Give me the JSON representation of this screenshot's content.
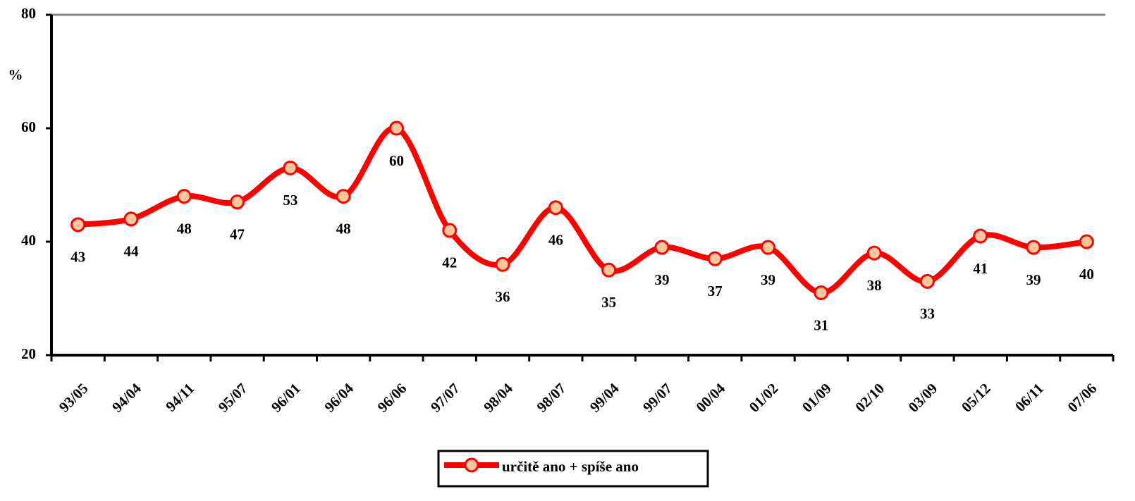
{
  "chart_data": {
    "type": "line",
    "y_axis_label": "%",
    "categories": [
      "93/05",
      "94/04",
      "94/11",
      "95/07",
      "96/01",
      "96/04",
      "96/06",
      "97/07",
      "98/04",
      "98/07",
      "99/04",
      "99/07",
      "00/04",
      "01/02",
      "01/09",
      "02/10",
      "03/09",
      "05/12",
      "06/11",
      "07/06"
    ],
    "series": [
      {
        "name": "určitě ano + spíše ano",
        "color": "#ff0000",
        "values": [
          43,
          44,
          48,
          47,
          53,
          48,
          60,
          42,
          36,
          46,
          35,
          39,
          37,
          39,
          31,
          38,
          33,
          41,
          39,
          40
        ]
      }
    ],
    "ylim": [
      20,
      80
    ],
    "yticks": [
      20,
      40,
      60,
      80
    ],
    "legend": "bottom"
  }
}
